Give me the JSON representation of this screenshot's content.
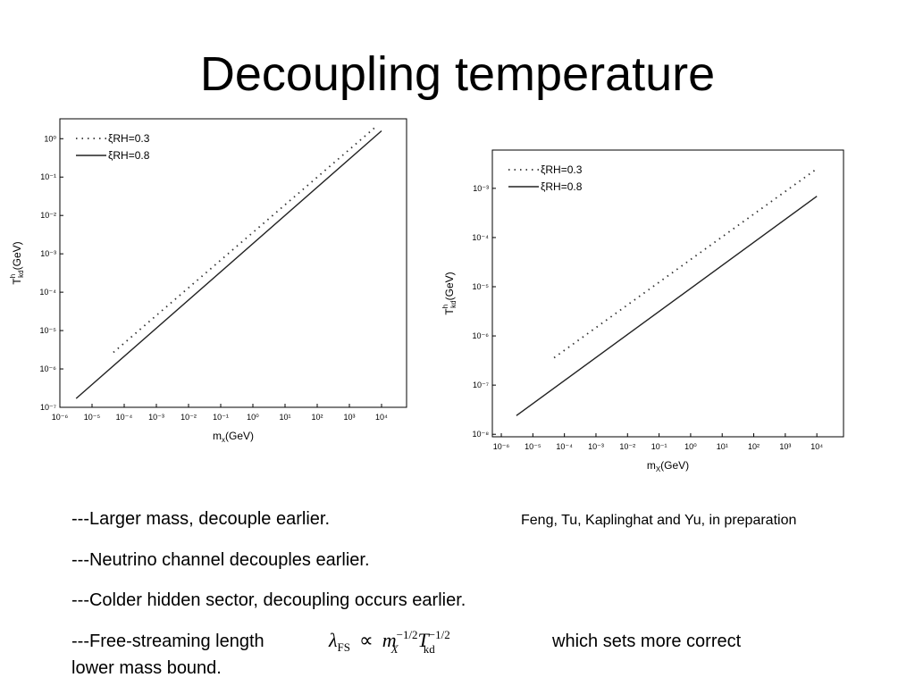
{
  "title": "Decoupling temperature",
  "citation": "Feng, Tu, Kaplinghat and Yu, in preparation",
  "bullets": [
    "---Larger mass, decouple earlier.",
    "---Neutrino channel decouples earlier.",
    "---Colder hidden sector, decoupling occurs earlier."
  ],
  "last_bullet": {
    "before": "---Free-streaming length",
    "after": "which sets more correct",
    "continuation": "lower mass bound."
  },
  "formula": {
    "lambda": "λ",
    "lambda_sub": "FS",
    "prop": "∝",
    "m": "m",
    "m_sub": "X",
    "m_sup": "−1/2",
    "t": "T",
    "t_sub": "kd",
    "t_sup": "−1/2"
  },
  "chart_data": [
    {
      "type": "line",
      "log_x": true,
      "log_y": true,
      "legend": "upper left",
      "xlabel": {
        "base": "m",
        "sub": "x",
        "unit": "(GeV)"
      },
      "ylabel": {
        "base": "T",
        "sup": "h",
        "sub": "kd",
        "unit": "(GeV)"
      },
      "xlim": [
        1e-06,
        60000.0
      ],
      "ylim": [
        1e-07,
        3.3
      ],
      "xticks": [
        {
          "value": 1e-06,
          "label": "10⁻⁶"
        },
        {
          "value": 1e-05,
          "label": "10⁻⁵"
        },
        {
          "value": 0.0001,
          "label": "10⁻⁴"
        },
        {
          "value": 0.001,
          "label": "10⁻³"
        },
        {
          "value": 0.01,
          "label": "10⁻²"
        },
        {
          "value": 0.1,
          "label": "10⁻¹"
        },
        {
          "value": 1,
          "label": "10⁰"
        },
        {
          "value": 10,
          "label": "10¹"
        },
        {
          "value": 100,
          "label": "10²"
        },
        {
          "value": 1000,
          "label": "10³"
        },
        {
          "value": 10000,
          "label": "10⁴"
        }
      ],
      "yticks": [
        {
          "value": 1e-07,
          "label": "10⁻⁷"
        },
        {
          "value": 1e-06,
          "label": "10⁻⁶"
        },
        {
          "value": 1e-05,
          "label": "10⁻⁵"
        },
        {
          "value": 0.0001,
          "label": "10⁻⁴"
        },
        {
          "value": 0.001,
          "label": "10⁻³"
        },
        {
          "value": 0.01,
          "label": "10⁻²"
        },
        {
          "value": 0.1,
          "label": "10⁻¹"
        },
        {
          "value": 1,
          "label": "10⁰"
        }
      ],
      "series": [
        {
          "name": "ξRH=0.3",
          "color": "#333333",
          "line_style": "dotted",
          "x": [
            4.6e-05,
            6000
          ],
          "values": [
            2.7e-06,
            1.9
          ]
        },
        {
          "name": "ξRH=0.8",
          "color": "#222222",
          "line_style": "solid",
          "x": [
            3.2e-06,
            10000
          ],
          "values": [
            1.7e-07,
            1.6
          ]
        }
      ]
    },
    {
      "type": "line",
      "log_x": true,
      "log_y": true,
      "legend": "upper left",
      "xlabel": {
        "base": "m",
        "sub": "X",
        "unit": "(GeV)"
      },
      "ylabel": {
        "base": "T",
        "sup": "h",
        "sub": "kd",
        "unit": "(GeV)"
      },
      "xlim": [
        5.2e-07,
        70000.0
      ],
      "ylim": [
        8.9e-09,
        0.006
      ],
      "xticks": [
        {
          "value": 1e-06,
          "label": "10⁻⁶"
        },
        {
          "value": 1e-05,
          "label": "10⁻⁵"
        },
        {
          "value": 0.0001,
          "label": "10⁻⁴"
        },
        {
          "value": 0.001,
          "label": "10⁻³"
        },
        {
          "value": 0.01,
          "label": "10⁻²"
        },
        {
          "value": 0.1,
          "label": "10⁻¹"
        },
        {
          "value": 1,
          "label": "10⁰"
        },
        {
          "value": 10,
          "label": "10¹"
        },
        {
          "value": 100,
          "label": "10²"
        },
        {
          "value": 1000,
          "label": "10³"
        },
        {
          "value": 10000,
          "label": "10⁴"
        }
      ],
      "yticks": [
        {
          "value": 1e-08,
          "label": "10⁻⁸"
        },
        {
          "value": 1e-07,
          "label": "10⁻⁷"
        },
        {
          "value": 1e-06,
          "label": "10⁻⁶"
        },
        {
          "value": 1e-05,
          "label": "10⁻⁵"
        },
        {
          "value": 0.0001,
          "label": "10⁻⁴"
        },
        {
          "value": 0.001,
          "label": "10⁻³"
        }
      ],
      "series": [
        {
          "name": "ξRH=0.3",
          "color": "#333333",
          "line_style": "dotted",
          "x": [
            4.7e-05,
            10000
          ],
          "values": [
            3.6e-07,
            0.0025
          ]
        },
        {
          "name": "ξRH=0.8",
          "color": "#222222",
          "line_style": "solid",
          "x": [
            3e-06,
            10000
          ],
          "values": [
            2.4e-08,
            0.00069
          ]
        }
      ]
    }
  ]
}
